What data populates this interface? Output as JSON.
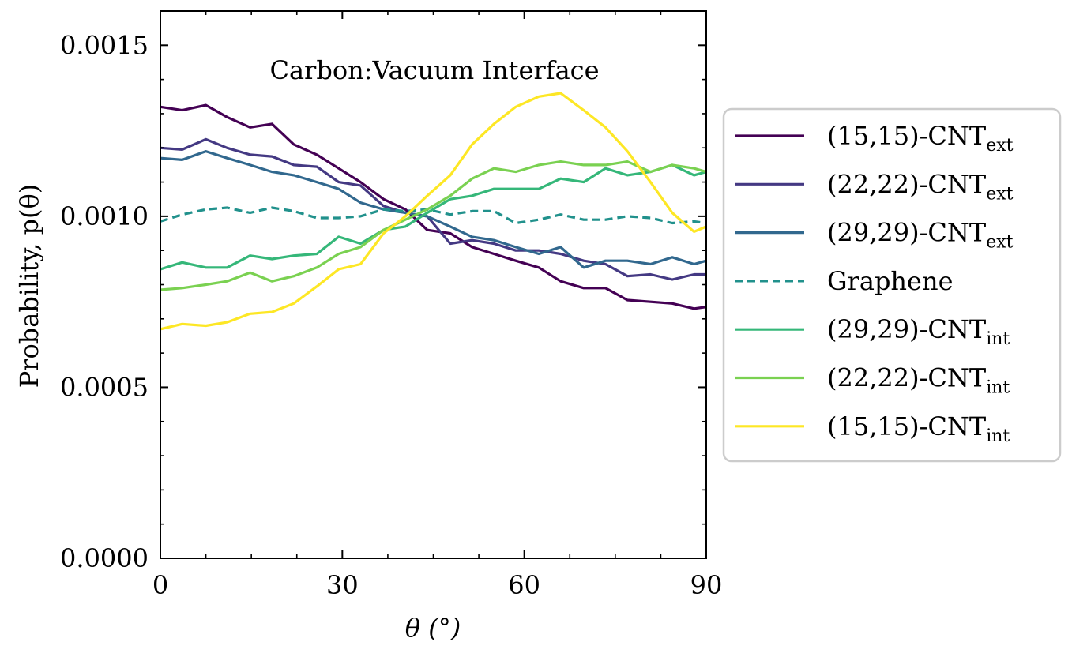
{
  "chart_data": {
    "type": "line",
    "annotation": "Carbon:Vacuum Interface",
    "xlabel": "θ (°)",
    "ylabel": "Probability, p(θ)",
    "xlim": [
      0,
      90
    ],
    "ylim": [
      0,
      0.0016
    ],
    "xticks": [
      0,
      30,
      60,
      90
    ],
    "xtick_labels": [
      "0",
      "30",
      "60",
      "90"
    ],
    "yticks": [
      0,
      0.0005,
      0.001,
      0.0015
    ],
    "ytick_labels": [
      "0.0000",
      "0.0005",
      "0.0010",
      "0.0015"
    ],
    "legend_position": "right, outside",
    "x": [
      0,
      3.6,
      7.5,
      11,
      14.8,
      18.4,
      22,
      25.8,
      29.4,
      33,
      36.8,
      40.4,
      44,
      47.8,
      51.4,
      55,
      58.6,
      62.4,
      66,
      69.8,
      73.4,
      77,
      80.8,
      84.4,
      88,
      90
    ],
    "series": [
      {
        "name": "(15,15)-CNT",
        "sub": "ext",
        "color": "#440154",
        "dashed": false,
        "values": [
          0.00132,
          0.00131,
          0.001325,
          0.00129,
          0.00126,
          0.00127,
          0.00121,
          0.00118,
          0.00114,
          0.0011,
          0.00105,
          0.00102,
          0.00096,
          0.00095,
          0.00091,
          0.00089,
          0.00087,
          0.00085,
          0.00081,
          0.00079,
          0.00079,
          0.000755,
          0.00075,
          0.000745,
          0.00073,
          0.000735
        ]
      },
      {
        "name": "(22,22)-CNT",
        "sub": "ext",
        "color": "#443983",
        "dashed": false,
        "values": [
          0.0012,
          0.001195,
          0.001225,
          0.0012,
          0.00118,
          0.001175,
          0.00115,
          0.001145,
          0.0011,
          0.00109,
          0.00103,
          0.00101,
          0.001,
          0.00092,
          0.00093,
          0.00092,
          0.0009,
          0.0009,
          0.00089,
          0.00087,
          0.00086,
          0.000825,
          0.00083,
          0.000815,
          0.00083,
          0.00083
        ]
      },
      {
        "name": "(29,29)-CNT",
        "sub": "ext",
        "color": "#31688e",
        "dashed": false,
        "values": [
          0.00117,
          0.001165,
          0.00119,
          0.00117,
          0.00115,
          0.00113,
          0.00112,
          0.0011,
          0.00108,
          0.00104,
          0.00102,
          0.00101,
          0.001,
          0.00097,
          0.00094,
          0.00093,
          0.00091,
          0.00089,
          0.00091,
          0.00085,
          0.00087,
          0.00087,
          0.00086,
          0.00088,
          0.00086,
          0.00087
        ]
      },
      {
        "name": "Graphene",
        "sub": "",
        "color": "#21918c",
        "dashed": true,
        "values": [
          0.000985,
          0.001005,
          0.00102,
          0.001025,
          0.00101,
          0.001025,
          0.001015,
          0.000995,
          0.000995,
          0.001,
          0.00102,
          0.001015,
          0.00102,
          0.001005,
          0.001015,
          0.001015,
          0.00098,
          0.00099,
          0.001005,
          0.00099,
          0.00099,
          0.001,
          0.000995,
          0.00098,
          0.000985,
          0.00098
        ]
      },
      {
        "name": "(29,29)-CNT",
        "sub": "int",
        "color": "#35b779",
        "dashed": false,
        "values": [
          0.000845,
          0.000865,
          0.00085,
          0.00085,
          0.000885,
          0.000875,
          0.000885,
          0.00089,
          0.00094,
          0.00092,
          0.00096,
          0.00097,
          0.00101,
          0.00105,
          0.00106,
          0.00108,
          0.00108,
          0.00108,
          0.00111,
          0.0011,
          0.00114,
          0.00112,
          0.00113,
          0.00115,
          0.00112,
          0.00113
        ]
      },
      {
        "name": "(22,22)-CNT",
        "sub": "int",
        "color": "#7ad151",
        "dashed": false,
        "values": [
          0.000785,
          0.00079,
          0.0008,
          0.00081,
          0.000835,
          0.00081,
          0.000825,
          0.00085,
          0.00089,
          0.00091,
          0.00096,
          0.00099,
          0.00102,
          0.00106,
          0.00111,
          0.00114,
          0.00113,
          0.00115,
          0.00116,
          0.00115,
          0.00115,
          0.00116,
          0.00113,
          0.00115,
          0.00114,
          0.00113
        ]
      },
      {
        "name": "(15,15)-CNT",
        "sub": "int",
        "color": "#fde725",
        "dashed": false,
        "values": [
          0.00067,
          0.000685,
          0.00068,
          0.00069,
          0.000715,
          0.00072,
          0.000745,
          0.000795,
          0.000845,
          0.00086,
          0.00095,
          0.001,
          0.00106,
          0.00112,
          0.00121,
          0.00127,
          0.00132,
          0.00135,
          0.00136,
          0.00131,
          0.00126,
          0.00119,
          0.0011,
          0.00101,
          0.000955,
          0.00097
        ]
      }
    ]
  }
}
